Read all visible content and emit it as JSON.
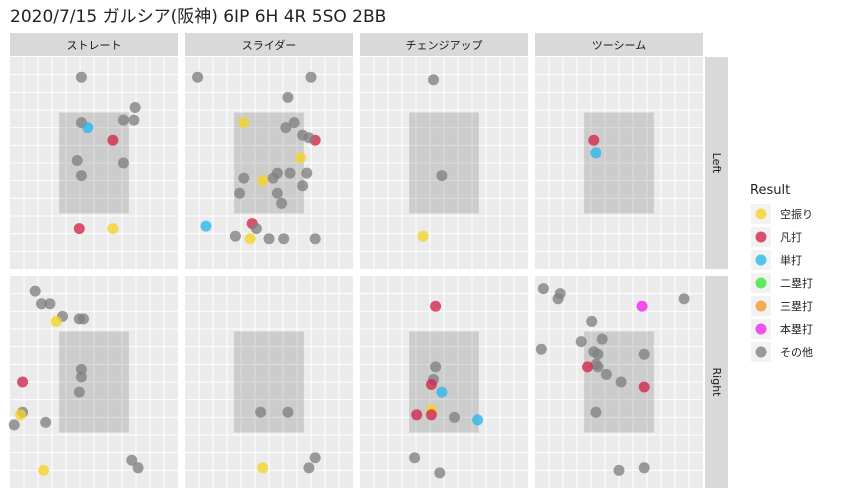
{
  "chart_data": {
    "type": "scatter",
    "title": "2020/7/15 ガルシア(阪神) 6IP 6H 4R 5SO 2BB",
    "xlim": [
      -2.0,
      2.0
    ],
    "ylim": [
      0.4,
      4.6
    ],
    "strike_zone": {
      "x": [
        -0.83,
        0.83
      ],
      "y": [
        1.5,
        3.5
      ]
    },
    "columns": [
      "ストレート",
      "スライダー",
      "チェンジアップ",
      "ツーシーム"
    ],
    "rows": [
      "Left",
      "Right"
    ],
    "legend": {
      "title": "Result",
      "placement": "right",
      "items": [
        {
          "key": "karaburi",
          "label": "空振り",
          "color": "#f5d327"
        },
        {
          "key": "bonda",
          "label": "凡打",
          "color": "#d1254a"
        },
        {
          "key": "tanda",
          "label": "単打",
          "color": "#29b6ec"
        },
        {
          "key": "niruida",
          "label": "二塁打",
          "color": "#33e83a"
        },
        {
          "key": "sanruida",
          "label": "三塁打",
          "color": "#f5962a"
        },
        {
          "key": "honruida",
          "label": "本塁打",
          "color": "#ee22ee"
        },
        {
          "key": "sonota",
          "label": "その他",
          "color": "#808080"
        }
      ]
    },
    "series": [
      {
        "column": "ストレート",
        "row": "Left",
        "points": [
          [
            -0.3,
            4.2
          ],
          [
            -0.3,
            3.3
          ],
          [
            -0.15,
            3.2
          ],
          [
            0.7,
            3.35
          ],
          [
            0.98,
            3.6
          ],
          [
            0.95,
            3.35
          ],
          [
            0.45,
            2.95
          ],
          [
            -0.4,
            2.55
          ],
          [
            -0.3,
            2.25
          ],
          [
            0.7,
            2.5
          ],
          [
            -0.35,
            1.2
          ],
          [
            0.45,
            1.2
          ]
        ],
        "results": [
          "sonota",
          "sonota",
          "tanda",
          "sonota",
          "sonota",
          "sonota",
          "bonda",
          "sonota",
          "sonota",
          "sonota",
          "bonda",
          "karaburi"
        ]
      },
      {
        "column": "スライダー",
        "row": "Left",
        "points": [
          [
            -1.7,
            4.2
          ],
          [
            1.0,
            4.2
          ],
          [
            0.45,
            3.8
          ],
          [
            -0.6,
            3.3
          ],
          [
            0.4,
            3.2
          ],
          [
            0.6,
            3.3
          ],
          [
            0.8,
            3.05
          ],
          [
            1.1,
            2.95
          ],
          [
            0.95,
            3.0
          ],
          [
            0.75,
            2.6
          ],
          [
            0.9,
            2.3
          ],
          [
            0.5,
            2.3
          ],
          [
            -0.15,
            2.15
          ],
          [
            0.2,
            2.3
          ],
          [
            -0.6,
            2.2
          ],
          [
            0.8,
            2.05
          ],
          [
            0.1,
            2.2
          ],
          [
            0.2,
            1.9
          ],
          [
            0.3,
            1.7
          ],
          [
            -0.7,
            1.9
          ],
          [
            -0.4,
            1.3
          ],
          [
            -1.5,
            1.25
          ],
          [
            -0.3,
            1.2
          ],
          [
            -0.8,
            1.05
          ],
          [
            -0.45,
            1.0
          ],
          [
            0.0,
            1.0
          ],
          [
            0.35,
            1.0
          ],
          [
            1.1,
            1.0
          ]
        ],
        "results": [
          "sonota",
          "sonota",
          "sonota",
          "karaburi",
          "sonota",
          "sonota",
          "sonota",
          "bonda",
          "sonota",
          "karaburi",
          "sonota",
          "sonota",
          "karaburi",
          "sonota",
          "sonota",
          "sonota",
          "sonota",
          "sonota",
          "sonota",
          "sonota",
          "bonda",
          "tanda",
          "sonota",
          "sonota",
          "karaburi",
          "sonota",
          "sonota",
          "sonota"
        ]
      },
      {
        "column": "チェンジアップ",
        "row": "Left",
        "points": [
          [
            -0.25,
            4.15
          ],
          [
            -0.05,
            2.25
          ],
          [
            -0.5,
            1.05
          ]
        ],
        "results": [
          "sonota",
          "sonota",
          "karaburi"
        ]
      },
      {
        "column": "ツーシーム",
        "row": "Left",
        "points": [
          [
            -0.6,
            2.95
          ],
          [
            -0.55,
            2.7
          ]
        ],
        "results": [
          "bonda",
          "tanda"
        ]
      },
      {
        "column": "ストレート",
        "row": "Right",
        "points": [
          [
            -1.4,
            4.3
          ],
          [
            -1.25,
            4.05
          ],
          [
            -1.05,
            4.05
          ],
          [
            -0.75,
            3.8
          ],
          [
            -0.9,
            3.7
          ],
          [
            -0.35,
            3.75
          ],
          [
            -0.25,
            3.75
          ],
          [
            -0.3,
            2.75
          ],
          [
            -0.3,
            2.6
          ],
          [
            -0.35,
            2.3
          ],
          [
            -1.7,
            2.5
          ],
          [
            -1.7,
            1.9
          ],
          [
            -1.75,
            1.85
          ],
          [
            -1.9,
            1.65
          ],
          [
            -1.15,
            1.7
          ],
          [
            0.9,
            0.95
          ],
          [
            1.05,
            0.8
          ],
          [
            -1.2,
            0.75
          ]
        ],
        "results": [
          "sonota",
          "sonota",
          "sonota",
          "sonota",
          "karaburi",
          "sonota",
          "sonota",
          "sonota",
          "sonota",
          "sonota",
          "bonda",
          "sonota",
          "karaburi",
          "sonota",
          "sonota",
          "sonota",
          "sonota",
          "karaburi"
        ]
      },
      {
        "column": "スライダー",
        "row": "Right",
        "points": [
          [
            -0.2,
            1.9
          ],
          [
            0.45,
            1.9
          ],
          [
            1.1,
            1.0
          ],
          [
            0.95,
            0.8
          ],
          [
            -0.15,
            0.8
          ]
        ],
        "results": [
          "sonota",
          "sonota",
          "sonota",
          "sonota",
          "karaburi"
        ]
      },
      {
        "column": "チェンジアップ",
        "row": "Right",
        "points": [
          [
            -0.2,
            4.0
          ],
          [
            -0.2,
            2.8
          ],
          [
            -0.25,
            2.55
          ],
          [
            -0.3,
            2.45
          ],
          [
            -0.05,
            2.3
          ],
          [
            -0.3,
            1.95
          ],
          [
            -0.3,
            1.85
          ],
          [
            -0.65,
            1.85
          ],
          [
            0.25,
            1.8
          ],
          [
            0.8,
            1.75
          ],
          [
            -0.7,
            1.0
          ],
          [
            -0.1,
            0.7
          ]
        ],
        "results": [
          "bonda",
          "sonota",
          "sonota",
          "bonda",
          "tanda",
          "karaburi",
          "bonda",
          "bonda",
          "sonota",
          "tanda",
          "sonota",
          "sonota"
        ]
      },
      {
        "column": "ツーシーム",
        "row": "Right",
        "points": [
          [
            -1.8,
            4.35
          ],
          [
            -1.4,
            4.25
          ],
          [
            -1.45,
            4.15
          ],
          [
            0.55,
            4.0
          ],
          [
            1.55,
            4.15
          ],
          [
            -0.65,
            3.7
          ],
          [
            -0.4,
            3.35
          ],
          [
            -0.9,
            3.3
          ],
          [
            -1.85,
            3.15
          ],
          [
            -0.6,
            3.1
          ],
          [
            -0.5,
            3.05
          ],
          [
            0.6,
            3.05
          ],
          [
            -0.55,
            2.85
          ],
          [
            -0.5,
            2.8
          ],
          [
            -0.75,
            2.8
          ],
          [
            -0.3,
            2.65
          ],
          [
            0.05,
            2.5
          ],
          [
            0.6,
            2.4
          ],
          [
            -0.55,
            1.9
          ],
          [
            0.0,
            0.75
          ],
          [
            0.6,
            0.8
          ]
        ],
        "results": [
          "sonota",
          "sonota",
          "sonota",
          "honruida",
          "sonota",
          "sonota",
          "sonota",
          "sonota",
          "sonota",
          "sonota",
          "sonota",
          "sonota",
          "sonota",
          "sonota",
          "bonda",
          "sonota",
          "sonota",
          "bonda",
          "sonota",
          "sonota",
          "sonota"
        ]
      }
    ]
  }
}
